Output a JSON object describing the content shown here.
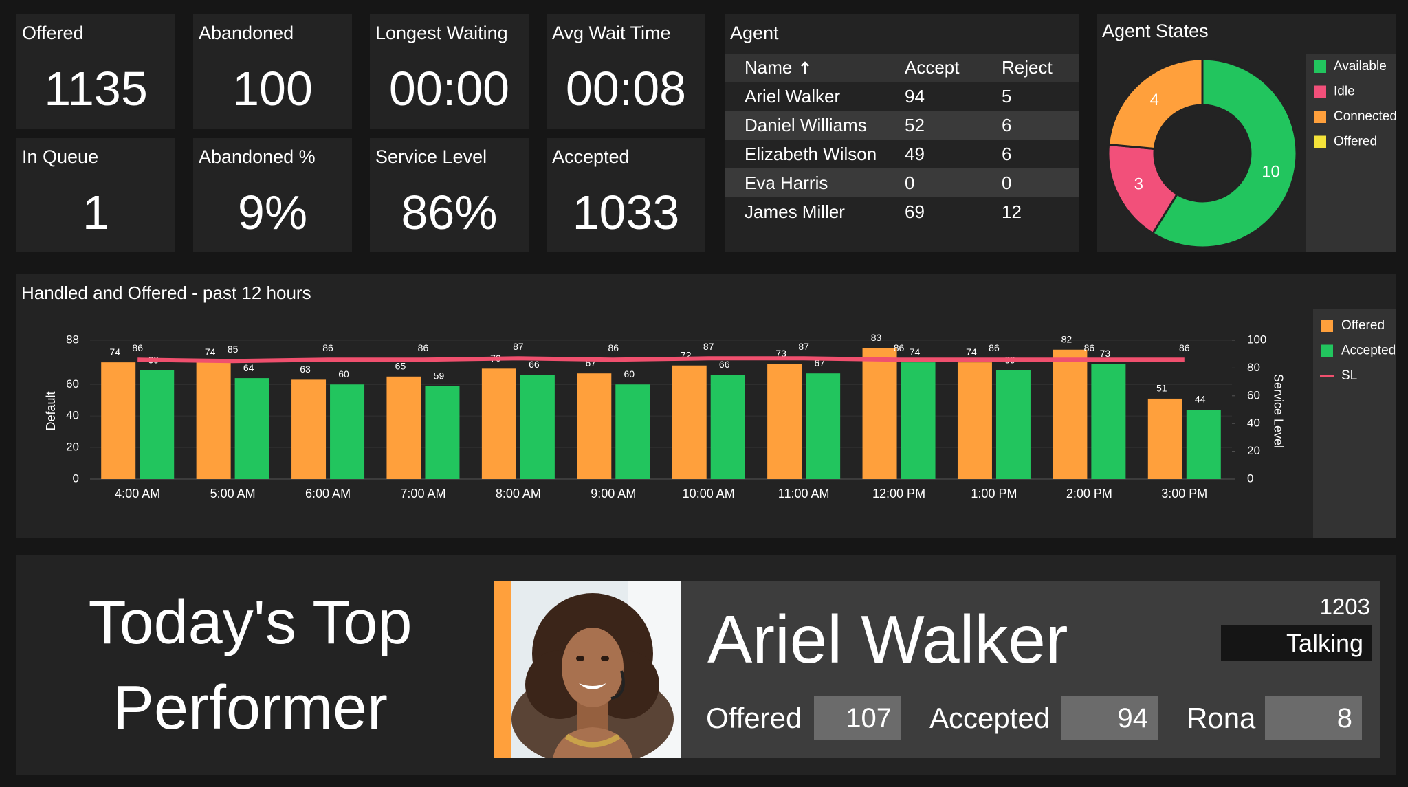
{
  "kpis": [
    {
      "label": "Offered",
      "value": "1135"
    },
    {
      "label": "Abandoned",
      "value": "100"
    },
    {
      "label": "Longest Waiting",
      "value": "00:00"
    },
    {
      "label": "Avg Wait Time",
      "value": "00:08"
    },
    {
      "label": "In Queue",
      "value": "1"
    },
    {
      "label": "Abandoned %",
      "value": "9%"
    },
    {
      "label": "Service Level",
      "value": "86%"
    },
    {
      "label": "Accepted",
      "value": "1033"
    }
  ],
  "agent_table": {
    "title": "Agent",
    "columns": [
      "Name",
      "Accept",
      "Reject"
    ],
    "rows": [
      [
        "Ariel Walker",
        "94",
        "5"
      ],
      [
        "Daniel Williams",
        "52",
        "6"
      ],
      [
        "Elizabeth Wilson",
        "49",
        "6"
      ],
      [
        "Eva Harris",
        "0",
        "0"
      ],
      [
        "James Miller",
        "69",
        "12"
      ]
    ]
  },
  "chart_data": [
    {
      "type": "pie",
      "donut": true,
      "title": "Agent States",
      "categories": [
        "Available",
        "Idle",
        "Connected",
        "Offered"
      ],
      "values": [
        10,
        3,
        4,
        0
      ],
      "colors": [
        "#22c55e",
        "#f2507a",
        "#ffa03c",
        "#f5e33a"
      ],
      "legend": "right"
    },
    {
      "type": "bar",
      "title": "Handled and Offered - past 12 hours",
      "categories": [
        "4:00 AM",
        "5:00 AM",
        "6:00 AM",
        "7:00 AM",
        "8:00 AM",
        "9:00 AM",
        "10:00 AM",
        "11:00 AM",
        "12:00 PM",
        "1:00 PM",
        "2:00 PM",
        "3:00 PM"
      ],
      "series": [
        {
          "name": "Offered",
          "color": "#ffa03c",
          "values": [
            74,
            74,
            63,
            65,
            70,
            67,
            72,
            73,
            83,
            74,
            82,
            51
          ]
        },
        {
          "name": "Accepted",
          "color": "#22c55e",
          "values": [
            69,
            64,
            60,
            59,
            66,
            60,
            66,
            67,
            74,
            69,
            73,
            44
          ]
        },
        {
          "name": "SL",
          "type": "line",
          "axis": "y2",
          "color": "#f0506e",
          "values": [
            86,
            85,
            86,
            86,
            87,
            86,
            87,
            87,
            86,
            86,
            86,
            86
          ]
        }
      ],
      "ylabel": "Default",
      "y2label": "Service Level",
      "ylim": [
        0,
        88
      ],
      "yticks": [
        0,
        20,
        40,
        60,
        88
      ],
      "y2lim": [
        0,
        100
      ],
      "y2ticks": [
        0,
        20,
        40,
        60,
        80,
        100
      ],
      "grid": true,
      "legend": "right",
      "data_labels": true
    }
  ],
  "top_performer": {
    "heading": "Today's Top Performer",
    "name": "Ariel Walker",
    "extension": "1203",
    "status": "Talking",
    "stats": [
      {
        "label": "Offered",
        "value": "107"
      },
      {
        "label": "Accepted",
        "value": "94"
      },
      {
        "label": "Rona",
        "value": "8"
      }
    ]
  }
}
